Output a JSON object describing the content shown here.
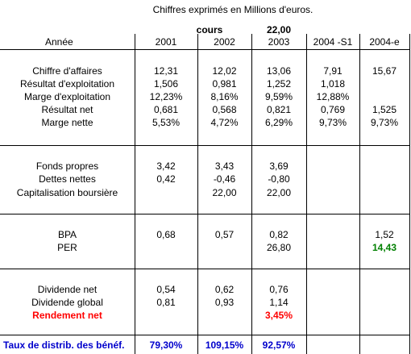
{
  "caption": "Chiffres exprimés en Millions d'euros.",
  "cours_label": "cours",
  "cours_value": "22,00",
  "header": {
    "label": "Année",
    "years": [
      "2001",
      "2002",
      "2003",
      "2004 -S1",
      "2004-e"
    ]
  },
  "sections": [
    {
      "rows": [
        {
          "label": "Chiffre d'affaires",
          "values": [
            "12,31",
            "12,02",
            "13,06",
            "7,91",
            "15,67"
          ]
        },
        {
          "label": "Résultat d'exploitation",
          "values": [
            "1,506",
            "0,981",
            "1,252",
            "1,018",
            ""
          ]
        },
        {
          "label": "Marge d'exploitation",
          "values": [
            "12,23%",
            "8,16%",
            "9,59%",
            "12,88%",
            ""
          ]
        },
        {
          "label": "Résultat net",
          "values": [
            "0,681",
            "0,568",
            "0,821",
            "0,769",
            "1,525"
          ]
        },
        {
          "label": "Marge nette",
          "values": [
            "5,53%",
            "4,72%",
            "6,29%",
            "9,73%",
            "9,73%"
          ]
        }
      ]
    },
    {
      "rows": [
        {
          "label": "Fonds propres",
          "values": [
            "3,42",
            "3,43",
            "3,69",
            "",
            ""
          ]
        },
        {
          "label": "Dettes nettes",
          "values": [
            "0,42",
            "-0,46",
            "-0,80",
            "",
            ""
          ]
        },
        {
          "label": "Capitalisation boursière",
          "values": [
            "",
            "22,00",
            "22,00",
            "",
            ""
          ]
        }
      ]
    },
    {
      "rows": [
        {
          "label": "BPA",
          "values": [
            "0,68",
            "0,57",
            "0,82",
            "",
            "1,52"
          ]
        },
        {
          "label": "PER",
          "values": [
            "",
            "",
            "26,80",
            "",
            "14,43"
          ]
        }
      ]
    },
    {
      "rows": [
        {
          "label": "Dividende net",
          "values": [
            "0,54",
            "0,62",
            "0,76",
            "",
            ""
          ]
        },
        {
          "label": "Dividende global",
          "values": [
            "0,81",
            "0,93",
            "1,14",
            "",
            ""
          ]
        },
        {
          "label": "Rendement net",
          "values": [
            "",
            "",
            "3,45%",
            "",
            ""
          ]
        }
      ]
    }
  ],
  "footer": {
    "label": "Taux de distrib. des bénéf.",
    "values": [
      "79,30%",
      "109,15%",
      "92,57%",
      "",
      ""
    ]
  },
  "colors": {
    "highlight_red": "#ff0000",
    "highlight_green": "#008000",
    "footer_blue": "#0000cc"
  }
}
